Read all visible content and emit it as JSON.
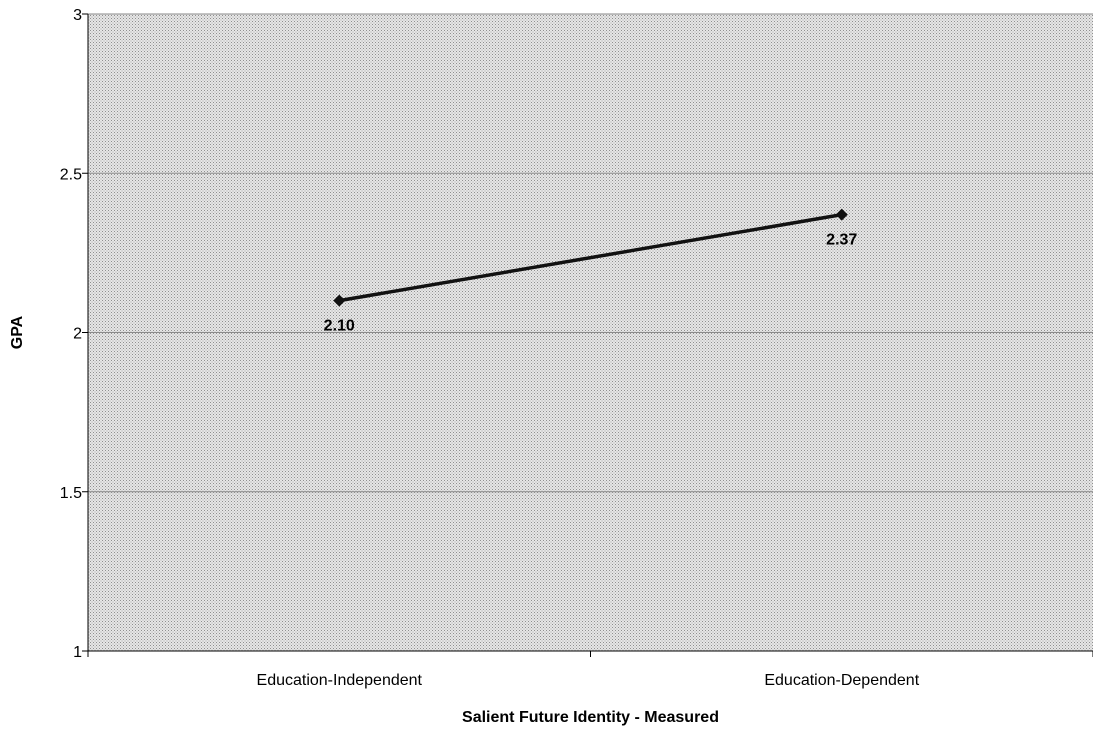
{
  "chart_data": {
    "type": "line",
    "title": "",
    "xlabel": "Salient Future Identity - Measured",
    "ylabel": "GPA",
    "categories": [
      "Education-Independent",
      "Education-Dependent"
    ],
    "series": [
      {
        "values": [
          2.1,
          2.37
        ],
        "data_labels": [
          "2.10",
          "2.37"
        ]
      }
    ],
    "ylim": [
      1,
      3
    ],
    "yticks": [
      "1",
      "1.5",
      "2",
      "2.5",
      "3"
    ],
    "yticks_values": [
      1,
      1.5,
      2,
      2.5,
      3
    ],
    "grid": "horizontal",
    "legend": "none",
    "colors": {
      "line": "#111111",
      "plot_bg": "#d8d8d8",
      "grid": "#8a8a8a"
    }
  }
}
